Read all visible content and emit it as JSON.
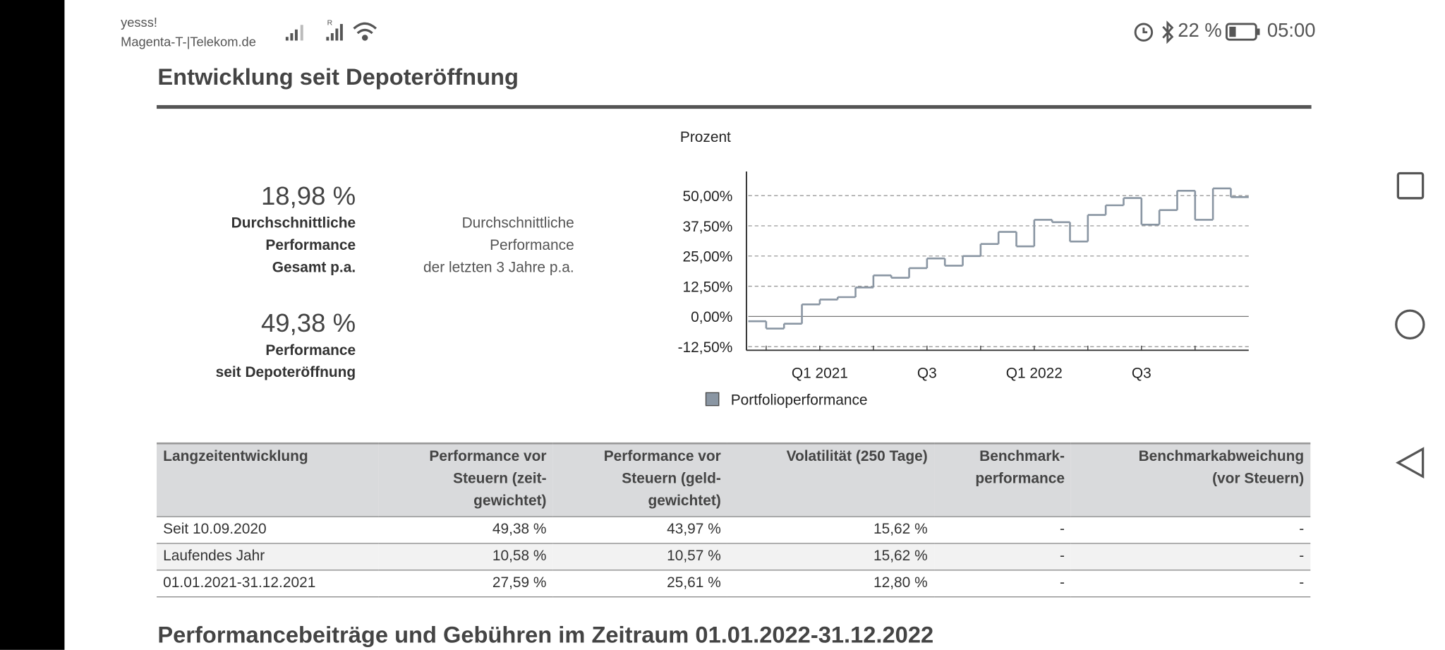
{
  "status_bar": {
    "operator": "yesss!",
    "network": "Magenta-T-|Telekom.de",
    "roaming": "R",
    "battery": "22 %",
    "time": "05:00"
  },
  "heading": "Entwicklung seit Depoteröffnung",
  "stats": [
    {
      "value": "18,98 %",
      "label": [
        "Durchschnittliche",
        "Performance",
        "Gesamt p.a."
      ]
    },
    {
      "label": [
        "Durchschnittliche",
        "Performance",
        "der letzten 3 Jahre p.a."
      ]
    },
    {
      "value": "49,38 %",
      "label": [
        "Performance",
        "seit Depoteröffnung"
      ]
    }
  ],
  "chart_data": {
    "type": "line",
    "y_label": "Prozent",
    "categories": [
      null,
      null,
      null,
      null,
      "Q1 2021",
      null,
      null,
      null,
      null,
      null,
      "Q3",
      null,
      null,
      null,
      null,
      null,
      "Q1 2022",
      null,
      null,
      null,
      null,
      null,
      "Q3",
      null,
      null,
      null,
      null,
      null
    ],
    "series": [
      {
        "name": "Portfolioperformance",
        "color": "#8a96a3",
        "values": [
          -2,
          -5,
          -3,
          5,
          7,
          8,
          12,
          17,
          16,
          20,
          24,
          21,
          25,
          30,
          35,
          29,
          40,
          39,
          31,
          42,
          46,
          49,
          38,
          44,
          52,
          40,
          53,
          49.38
        ]
      }
    ],
    "ylim": [
      -14,
      60
    ],
    "yticks": [
      {
        "value": -12.5,
        "label": "-12,50%"
      },
      {
        "value": 0,
        "label": "0,00%"
      },
      {
        "value": 12.5,
        "label": "12,50%"
      },
      {
        "value": 25,
        "label": "25,00%"
      },
      {
        "value": 37.5,
        "label": "37,50%"
      },
      {
        "value": 50,
        "label": "50,00%"
      }
    ],
    "grid": true
  },
  "table": {
    "header": [
      [
        "Langzeitentwicklung"
      ],
      [
        "Performance vor",
        "Steuern (zeit-",
        "gewichtet)"
      ],
      [
        "Performance vor",
        "Steuern (geld-",
        "gewichtet)"
      ],
      [
        "Volatilität (250 Tage)"
      ],
      [
        "Benchmark-",
        "performance"
      ],
      [
        "Benchmarkabweichung",
        "(vor Steuern)"
      ]
    ],
    "rows": [
      [
        "Seit 10.09.2020",
        "49,38 %",
        "43,97 %",
        "15,62 %",
        "-",
        "-"
      ],
      [
        "Laufendes Jahr",
        "10,58 %",
        "10,57 %",
        "15,62 %",
        "-",
        "-"
      ],
      [
        "01.01.2021-31.12.2021",
        "27,59 %",
        "25,61 %",
        "12,80 %",
        "-",
        "-"
      ]
    ]
  },
  "section_heading": "Performancebeiträge und Gebühren im Zeitraum 01.01.2022-31.12.2022"
}
